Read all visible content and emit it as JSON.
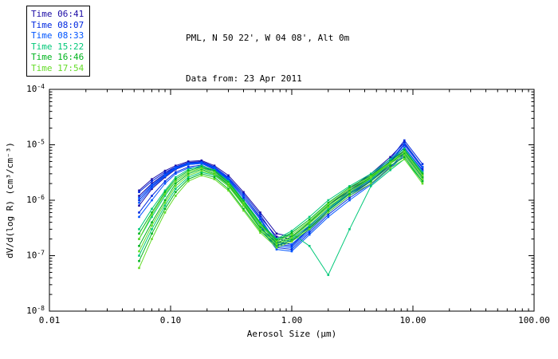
{
  "title": {
    "line1": "PML, N 50 22', W 04 08', Alt 0m",
    "line2": "Data from: 23 Apr 2011"
  },
  "legend": {
    "items": [
      {
        "label": "Time 06:41",
        "color": "#1c0ca6"
      },
      {
        "label": "Time 08:07",
        "color": "#0028e0"
      },
      {
        "label": "Time 08:33",
        "color": "#0055ff"
      },
      {
        "label": "Time 15:22",
        "color": "#00c878"
      },
      {
        "label": "Time 16:46",
        "color": "#00b41e"
      },
      {
        "label": "Time 17:54",
        "color": "#64dc28"
      }
    ]
  },
  "chart_data": {
    "type": "line",
    "title": "PML, N 50 22', W 04 08', Alt 0m — Data from: 23 Apr 2011",
    "xlabel": "Aerosol Size (μm)",
    "ylabel": "dV/d(log R) (cm³/cm⁻³)",
    "xscale": "log",
    "yscale": "log",
    "xlim": [
      0.01,
      100
    ],
    "ylim": [
      1e-08,
      0.0001
    ],
    "grid": false,
    "legend_position": "top-left",
    "x_ticks": [
      {
        "value": 0.01,
        "label": "0.01"
      },
      {
        "value": 0.1,
        "label": "0.10"
      },
      {
        "value": 1.0,
        "label": "1.00"
      },
      {
        "value": 10.0,
        "label": "10.00"
      },
      {
        "value": 100.0,
        "label": "100.00"
      }
    ],
    "y_tick_exponents": [
      -8,
      -7,
      -6,
      -5,
      -4
    ],
    "x": [
      0.055,
      0.07,
      0.09,
      0.11,
      0.14,
      0.18,
      0.23,
      0.3,
      0.4,
      0.55,
      0.75,
      1.0,
      1.4,
      2.0,
      3.0,
      4.5,
      6.5,
      8.5,
      12.0
    ],
    "series": [
      {
        "name": "06:41 scan 1",
        "time": "06:41",
        "color": "#1c0ca6",
        "y": [
          1.2e-06,
          2e-06,
          3e-06,
          4e-06,
          4.8e-06,
          5e-06,
          4e-06,
          2.5e-06,
          1.2e-06,
          5e-07,
          2.2e-07,
          2e-07,
          3.5e-07,
          7e-07,
          1.4e-06,
          2.6e-06,
          5e-06,
          9e-06,
          3.5e-06
        ]
      },
      {
        "name": "06:41 scan 2",
        "time": "06:41",
        "color": "#1c0ca6",
        "y": [
          8e-07,
          1.6e-06,
          2.6e-06,
          3.6e-06,
          4.4e-06,
          4.6e-06,
          3.6e-06,
          2.2e-06,
          1e-06,
          4e-07,
          1.8e-07,
          1.6e-07,
          3e-07,
          6e-07,
          1.2e-06,
          2.2e-06,
          4.5e-06,
          8e-06,
          3e-06
        ]
      },
      {
        "name": "06:41 scan 3",
        "time": "06:41",
        "color": "#1c0ca6",
        "y": [
          1.5e-06,
          2.4e-06,
          3.4e-06,
          4.2e-06,
          5e-06,
          5.2e-06,
          4.2e-06,
          2.8e-06,
          1.4e-06,
          6e-07,
          2.5e-07,
          2.2e-07,
          4e-07,
          8e-07,
          1.6e-06,
          3e-06,
          6e-06,
          1.1e-05,
          4e-06
        ]
      },
      {
        "name": "08:07 scan 1",
        "time": "08:07",
        "color": "#0028e0",
        "y": [
          1e-06,
          1.8e-06,
          2.8e-06,
          3.8e-06,
          4.5e-06,
          4.7e-06,
          3.8e-06,
          2.4e-06,
          1.1e-06,
          4.5e-07,
          1.6e-07,
          1.5e-07,
          3e-07,
          6.5e-07,
          1.3e-06,
          2.4e-06,
          5e-06,
          1e-05,
          3.8e-06
        ]
      },
      {
        "name": "08:07 scan 2",
        "time": "08:07",
        "color": "#0028e0",
        "y": [
          6e-07,
          1.2e-06,
          2.2e-06,
          3.2e-06,
          4e-06,
          4.3e-06,
          3.4e-06,
          2e-06,
          9e-07,
          3.5e-07,
          1.4e-07,
          1.3e-07,
          2.6e-07,
          5.5e-07,
          1.1e-06,
          2e-06,
          4e-06,
          7e-06,
          2.6e-06
        ]
      },
      {
        "name": "08:07 scan 3",
        "time": "08:07",
        "color": "#0028e0",
        "y": [
          1.4e-06,
          2.2e-06,
          3.2e-06,
          4e-06,
          4.7e-06,
          4.9e-06,
          4e-06,
          2.6e-06,
          1.3e-06,
          5.5e-07,
          2e-07,
          1.8e-07,
          3.4e-07,
          7e-07,
          1.5e-06,
          2.8e-06,
          5.5e-06,
          1.2e-05,
          4.5e-06
        ]
      },
      {
        "name": "08:33 scan 1",
        "time": "08:33",
        "color": "#0055ff",
        "y": [
          9e-07,
          1.7e-06,
          2.7e-06,
          3.7e-06,
          4.4e-06,
          4.6e-06,
          3.7e-06,
          2.3e-06,
          1e-06,
          4e-07,
          1.5e-07,
          1.4e-07,
          2.8e-07,
          6e-07,
          1.2e-06,
          2.3e-06,
          4.8e-06,
          9e-06,
          3.4e-06
        ]
      },
      {
        "name": "08:33 scan 2",
        "time": "08:33",
        "color": "#0055ff",
        "y": [
          5e-07,
          1e-06,
          2e-06,
          3e-06,
          3.8e-06,
          4e-06,
          3.2e-06,
          1.9e-06,
          8.5e-07,
          3.2e-07,
          1.3e-07,
          1.2e-07,
          2.4e-07,
          5e-07,
          1e-06,
          1.9e-06,
          3.8e-06,
          6.5e-06,
          2.4e-06
        ]
      },
      {
        "name": "08:33 scan 3",
        "time": "08:33",
        "color": "#0055ff",
        "y": [
          1.1e-06,
          1.9e-06,
          2.9e-06,
          3.9e-06,
          4.6e-06,
          4.8e-06,
          3.9e-06,
          2.5e-06,
          1.2e-06,
          4.8e-07,
          1.7e-07,
          1.6e-07,
          3.1e-07,
          6.6e-07,
          1.35e-06,
          2.5e-06,
          5.2e-06,
          1.05e-05,
          4e-06
        ]
      },
      {
        "name": "15:22 scan 1",
        "time": "15:22",
        "color": "#00c878",
        "y": [
          2e-07,
          5e-07,
          1.2e-06,
          2.2e-06,
          3.2e-06,
          3.8e-06,
          3.2e-06,
          2e-06,
          9e-07,
          3.5e-07,
          1.8e-07,
          2.5e-07,
          1.5e-07,
          4.5e-08,
          3e-07,
          1.8e-06,
          3.5e-06,
          5.5e-06,
          2.2e-06
        ]
      },
      {
        "name": "15:22 scan 2",
        "time": "15:22",
        "color": "#00c878",
        "y": [
          1e-07,
          3e-07,
          8e-07,
          1.6e-06,
          2.6e-06,
          3.2e-06,
          2.8e-06,
          1.8e-06,
          8e-07,
          3e-07,
          1.6e-07,
          2e-07,
          3.5e-07,
          7e-07,
          1.4e-06,
          2.4e-06,
          4.5e-06,
          7.5e-06,
          2.8e-06
        ]
      },
      {
        "name": "15:22 scan 3",
        "time": "15:22",
        "color": "#00c878",
        "y": [
          3e-07,
          7e-07,
          1.5e-06,
          2.6e-06,
          3.6e-06,
          4.2e-06,
          3.5e-06,
          2.2e-06,
          1e-06,
          4e-07,
          2e-07,
          2.8e-07,
          5e-07,
          1e-06,
          1.8e-06,
          3e-06,
          5.5e-06,
          8.5e-06,
          3.2e-06
        ]
      },
      {
        "name": "16:46 scan 1",
        "time": "16:46",
        "color": "#00b41e",
        "y": [
          1.5e-07,
          4e-07,
          1e-06,
          2e-06,
          3e-06,
          3.6e-06,
          3e-06,
          1.9e-06,
          8.5e-07,
          3.2e-07,
          1.7e-07,
          2.2e-07,
          4e-07,
          8e-07,
          1.5e-06,
          2.6e-06,
          4.8e-06,
          7e-06,
          2.6e-06
        ]
      },
      {
        "name": "16:46 scan 2",
        "time": "16:46",
        "color": "#00b41e",
        "y": [
          8e-08,
          2.5e-07,
          7e-07,
          1.4e-06,
          2.4e-06,
          3e-06,
          2.6e-06,
          1.6e-06,
          7e-07,
          2.8e-07,
          1.5e-07,
          1.9e-07,
          3.2e-07,
          6.5e-07,
          1.3e-06,
          2.2e-06,
          4.2e-06,
          6e-06,
          2.2e-06
        ]
      },
      {
        "name": "16:46 scan 3",
        "time": "16:46",
        "color": "#00b41e",
        "y": [
          2.5e-07,
          6e-07,
          1.4e-06,
          2.4e-06,
          3.4e-06,
          4e-06,
          3.4e-06,
          2.1e-06,
          9.5e-07,
          3.8e-07,
          1.9e-07,
          2.6e-07,
          4.5e-07,
          9e-07,
          1.7e-06,
          2.8e-06,
          5e-06,
          8e-06,
          3e-06
        ]
      },
      {
        "name": "17:54 scan 1",
        "time": "17:54",
        "color": "#64dc28",
        "y": [
          1.2e-07,
          3.5e-07,
          9e-07,
          1.8e-06,
          2.8e-06,
          3.4e-06,
          2.9e-06,
          1.8e-06,
          8e-07,
          3e-07,
          1.6e-07,
          2.1e-07,
          3.8e-07,
          7.5e-07,
          1.4e-06,
          2.5e-06,
          4.6e-06,
          6.5e-06,
          2.4e-06
        ]
      },
      {
        "name": "17:54 scan 2",
        "time": "17:54",
        "color": "#64dc28",
        "y": [
          6e-08,
          2e-07,
          6e-07,
          1.2e-06,
          2.2e-06,
          2.8e-06,
          2.4e-06,
          1.5e-06,
          6.5e-07,
          2.6e-07,
          1.4e-07,
          1.8e-07,
          3e-07,
          6e-07,
          1.2e-06,
          2e-06,
          3.8e-06,
          5.5e-06,
          2e-06
        ]
      },
      {
        "name": "17:54 scan 3",
        "time": "17:54",
        "color": "#64dc28",
        "y": [
          2e-07,
          5.5e-07,
          1.3e-06,
          2.2e-06,
          3.2e-06,
          3.8e-06,
          3.2e-06,
          2e-06,
          9e-07,
          3.6e-07,
          1.8e-07,
          2.4e-07,
          4.2e-07,
          8.5e-07,
          1.6e-06,
          2.7e-06,
          4.8e-06,
          7.5e-06,
          2.8e-06
        ]
      }
    ]
  }
}
